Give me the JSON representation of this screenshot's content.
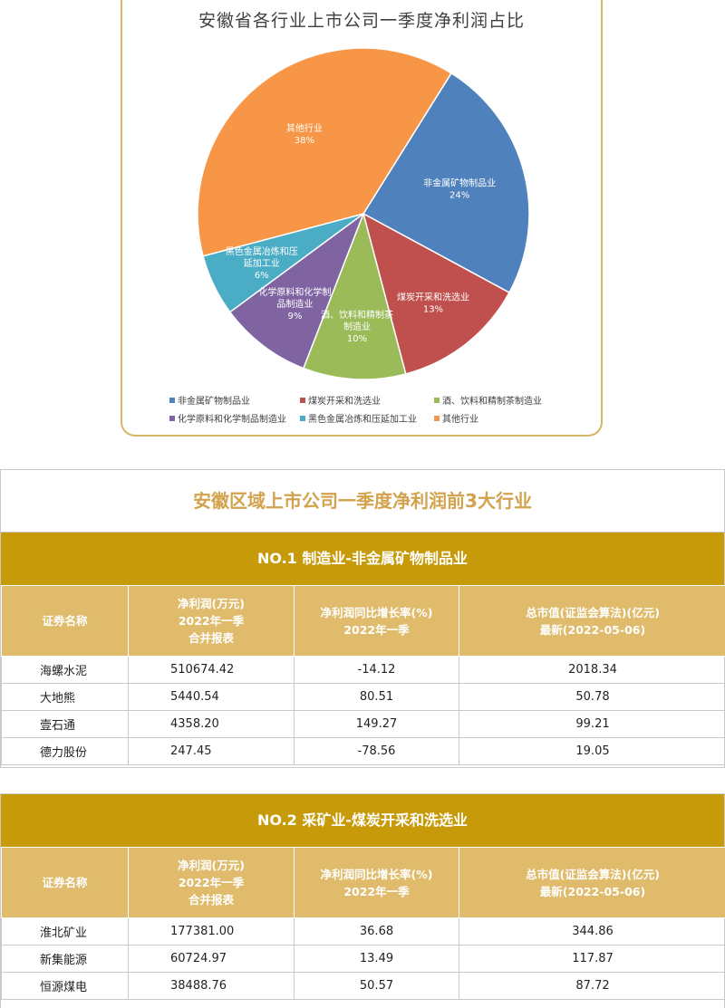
{
  "chart_data": {
    "type": "pie",
    "title": "安徽省各行业上市公司一季度净利润占比",
    "slices": [
      {
        "label_lines": [
          "非金属矿物制品业"
        ],
        "pct_text": "24%",
        "value": 24,
        "color": "#4f81bd",
        "legend": "非金属矿物制品业"
      },
      {
        "label_lines": [
          "煤炭开采和洗选业"
        ],
        "pct_text": "13%",
        "value": 13,
        "color": "#c0504d",
        "legend": "煤炭开采和洗选业"
      },
      {
        "label_lines": [
          "酒、饮料和精制茶",
          "制造业"
        ],
        "pct_text": "10%",
        "value": 10,
        "color": "#9bbb59",
        "legend": "酒、饮料和精制茶制造业"
      },
      {
        "label_lines": [
          "化学原料和化学制",
          "品制造业"
        ],
        "pct_text": "9%",
        "value": 9,
        "color": "#8064a2",
        "legend": "化学原料和化学制品制造业"
      },
      {
        "label_lines": [
          "黑色金属冶炼和压",
          "延加工业"
        ],
        "pct_text": "6%",
        "value": 6,
        "color": "#4bacc6",
        "legend": "黑色金属冶炼和压延加工业"
      },
      {
        "label_lines": [
          "其他行业"
        ],
        "pct_text": "38%",
        "value": 38,
        "color": "#f79646",
        "legend": "其他行业"
      }
    ],
    "legend_position": "bottom"
  },
  "tables_title": "安徽区域上市公司一季度净利润前3大行业",
  "headers": {
    "name": "证券名称",
    "profit": [
      "净利润(万元)",
      "2022年一季",
      "合并报表"
    ],
    "growth": [
      "净利润同比增长率(%)",
      "2022年一季"
    ],
    "mcap": [
      "总市值(证监会算法)(亿元)",
      "最新(2022-05-06)"
    ]
  },
  "industries": [
    {
      "title": "NO.1 制造业-非金属矿物制品业",
      "rows": [
        {
          "name": "海螺水泥",
          "profit": "510674.42",
          "growth": "-14.12",
          "mcap": "2018.34"
        },
        {
          "name": "大地熊",
          "profit": "5440.54",
          "growth": "80.51",
          "mcap": "50.78"
        },
        {
          "name": "壹石通",
          "profit": "4358.20",
          "growth": "149.27",
          "mcap": "99.21"
        },
        {
          "name": "德力股份",
          "profit": "247.45",
          "growth": "-78.56",
          "mcap": "19.05"
        }
      ]
    },
    {
      "title": "NO.2 采矿业-煤炭开采和洗选业",
      "rows": [
        {
          "name": "淮北矿业",
          "profit": "177381.00",
          "growth": "36.68",
          "mcap": "344.86"
        },
        {
          "name": "新集能源",
          "profit": "60724.97",
          "growth": "13.49",
          "mcap": "117.87"
        },
        {
          "name": "恒源煤电",
          "profit": "38488.76",
          "growth": "50.57",
          "mcap": "87.72"
        }
      ]
    }
  ]
}
